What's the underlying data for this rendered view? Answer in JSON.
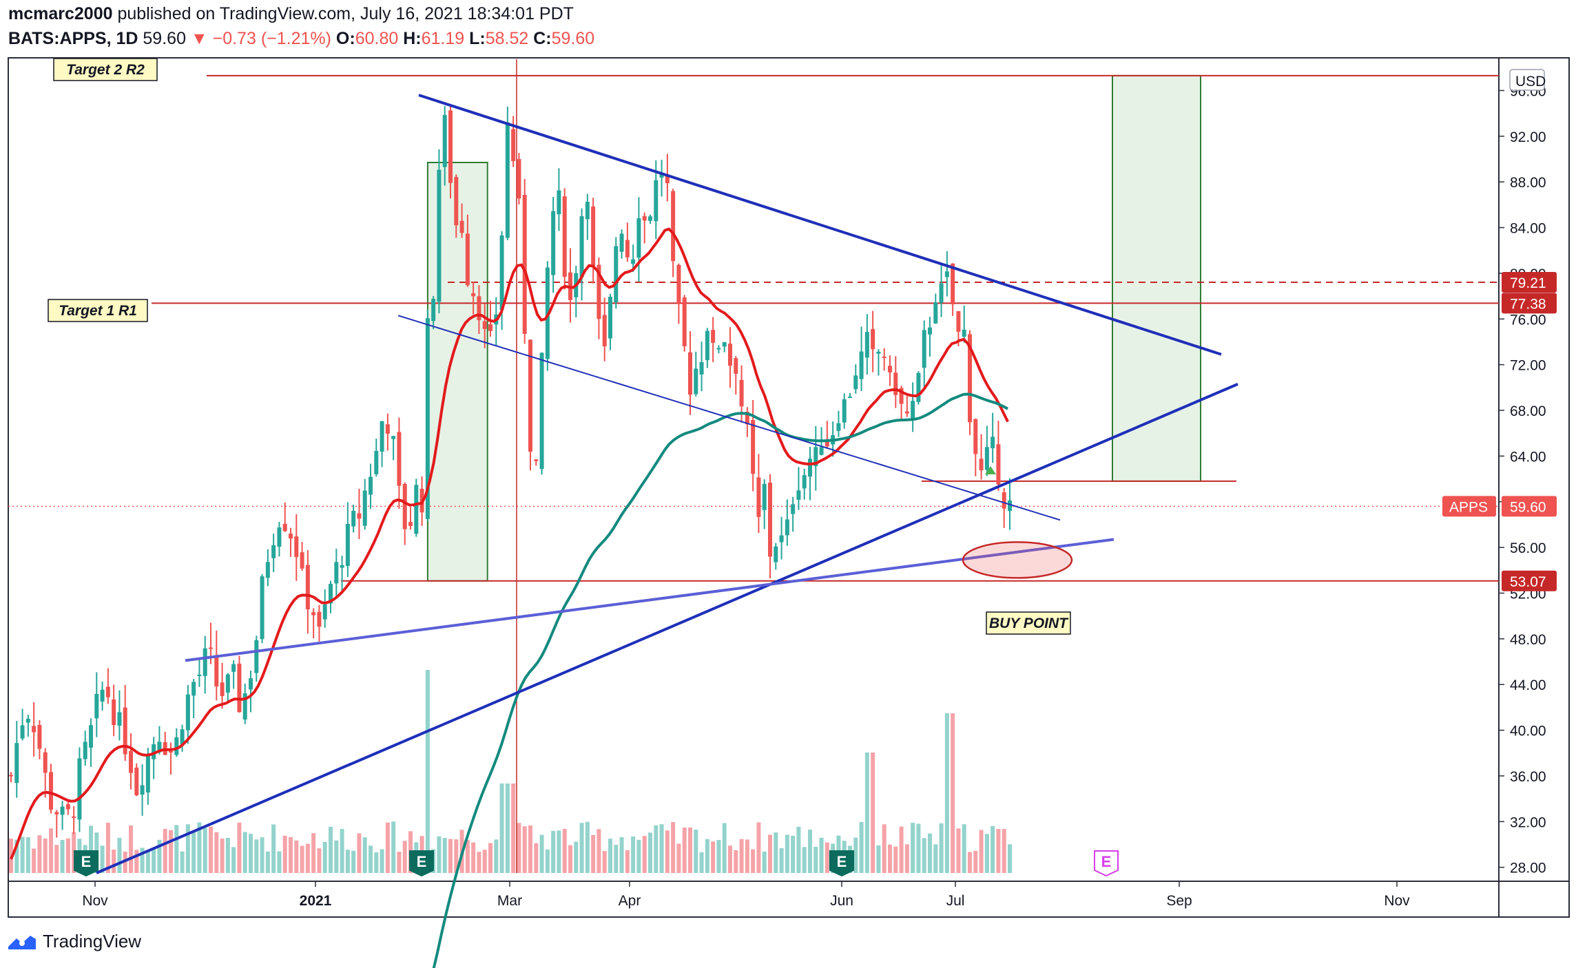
{
  "header": {
    "publisher": "mcmarc2000",
    "published_text": "published on TradingView.com, July 16, 2021 18:34:01 PDT",
    "symbol": "BATS:APPS, 1D",
    "last": "59.60",
    "change": "▼ −0.73 (−1.21%)",
    "o_label": "O:",
    "o_value": "60.80",
    "h_label": "H:",
    "h_value": "61.19",
    "l_label": "L:",
    "l_value": "58.52",
    "c_label": "C:",
    "c_value": "59.60"
  },
  "colors": {
    "up": "#26a69a",
    "down": "#ef5350",
    "vol_up": "#93d3cc",
    "vol_down": "#f5a3a8",
    "ema_short": "#e31a1c",
    "ema_long": "#138a7e",
    "trend_blue": "#1f2fb8",
    "trend_light": "#5b5fd6",
    "level_red": "#c62828",
    "zone_green": "#e6f2e6",
    "zone_border": "#2e7d32",
    "label_box": "#fff9c4"
  },
  "footer": {
    "brand": "TradingView",
    "logo_icon": "tradingview-logo-icon"
  },
  "chart_data": {
    "type": "candlestick",
    "symbol": "APPS",
    "currency_label": "USD",
    "x_ticks": [
      "Nov",
      "2021",
      "Mar",
      "Apr",
      "Jun",
      "Jul",
      "Sep",
      "Nov"
    ],
    "y_ticks": [
      "28.00",
      "32.00",
      "36.00",
      "40.00",
      "44.00",
      "48.00",
      "52.00",
      "56.00",
      "60.00",
      "64.00",
      "68.00",
      "72.00",
      "76.00",
      "80.00",
      "84.00",
      "88.00",
      "92.00",
      "96.00"
    ],
    "ylim": [
      27.5,
      98.5
    ],
    "price_tags": [
      {
        "text": "79.21",
        "price": 79.21
      },
      {
        "text": "77.38",
        "price": 77.38
      },
      {
        "text": "59.60",
        "price": 59.6
      },
      {
        "text": "53.07",
        "price": 53.07
      }
    ],
    "symbol_tag": "APPS",
    "annotations": [
      {
        "text": "Target 2 R2",
        "price": 97.3
      },
      {
        "text": "Target 1 R1",
        "price": 77.4
      },
      {
        "text": "BUY POINT",
        "price": 48.5
      }
    ],
    "earnings_markers": [
      "E",
      "E",
      "E",
      "E"
    ],
    "key_levels": [
      97.3,
      79.21,
      77.38,
      53.07,
      61.8
    ],
    "price_path": [
      [
        0,
        36
      ],
      [
        8,
        40
      ],
      [
        15,
        42
      ],
      [
        22,
        41
      ],
      [
        30,
        38
      ],
      [
        38,
        34
      ],
      [
        46,
        33
      ],
      [
        54,
        32
      ],
      [
        62,
        33
      ],
      [
        70,
        37
      ],
      [
        78,
        39
      ],
      [
        86,
        42
      ],
      [
        94,
        44
      ],
      [
        102,
        42
      ],
      [
        110,
        40
      ],
      [
        118,
        38
      ],
      [
        126,
        35
      ],
      [
        134,
        37
      ],
      [
        142,
        39
      ],
      [
        150,
        40
      ],
      [
        158,
        38
      ],
      [
        166,
        39
      ],
      [
        174,
        42
      ],
      [
        182,
        44
      ],
      [
        190,
        45
      ],
      [
        198,
        47
      ],
      [
        206,
        44
      ],
      [
        214,
        43
      ],
      [
        222,
        45
      ],
      [
        230,
        42
      ],
      [
        238,
        44
      ],
      [
        246,
        48
      ],
      [
        254,
        54
      ],
      [
        262,
        57
      ],
      [
        270,
        59
      ],
      [
        278,
        58
      ],
      [
        286,
        56
      ],
      [
        294,
        52
      ],
      [
        302,
        51
      ],
      [
        310,
        48
      ],
      [
        318,
        52
      ],
      [
        326,
        54
      ],
      [
        334,
        56
      ],
      [
        342,
        58
      ],
      [
        350,
        59
      ],
      [
        358,
        62
      ],
      [
        366,
        64
      ],
      [
        374,
        68
      ],
      [
        382,
        66
      ],
      [
        390,
        60
      ],
      [
        398,
        57
      ],
      [
        406,
        61
      ],
      [
        414,
        60
      ],
      [
        418,
        75
      ],
      [
        422,
        74
      ],
      [
        426,
        85
      ],
      [
        430,
        90
      ],
      [
        434,
        94
      ],
      [
        438,
        90
      ],
      [
        442,
        88
      ],
      [
        446,
        84
      ],
      [
        450,
        86
      ],
      [
        454,
        83
      ],
      [
        458,
        80
      ],
      [
        462,
        79
      ],
      [
        466,
        78
      ],
      [
        470,
        77
      ],
      [
        474,
        75
      ],
      [
        478,
        73
      ],
      [
        482,
        74
      ],
      [
        486,
        76
      ],
      [
        490,
        80
      ],
      [
        494,
        86
      ],
      [
        498,
        93
      ],
      [
        502,
        92
      ],
      [
        506,
        88
      ],
      [
        510,
        85
      ],
      [
        514,
        78
      ],
      [
        518,
        70
      ],
      [
        522,
        64
      ],
      [
        526,
        62
      ],
      [
        530,
        68
      ],
      [
        534,
        74
      ],
      [
        538,
        80
      ],
      [
        542,
        84
      ],
      [
        546,
        87
      ],
      [
        550,
        86
      ],
      [
        554,
        82
      ],
      [
        558,
        79
      ],
      [
        562,
        77
      ],
      [
        566,
        80
      ],
      [
        570,
        84
      ],
      [
        574,
        86
      ],
      [
        578,
        88
      ],
      [
        582,
        82
      ],
      [
        586,
        78
      ],
      [
        590,
        75
      ],
      [
        594,
        72
      ],
      [
        598,
        74
      ],
      [
        602,
        78
      ],
      [
        606,
        82
      ],
      [
        610,
        85
      ],
      [
        614,
        84
      ],
      [
        618,
        82
      ],
      [
        622,
        80
      ],
      [
        626,
        84
      ],
      [
        630,
        86
      ],
      [
        634,
        85
      ],
      [
        638,
        84
      ],
      [
        642,
        86
      ],
      [
        646,
        88
      ],
      [
        650,
        87
      ],
      [
        654,
        90
      ],
      [
        658,
        88
      ],
      [
        662,
        82
      ],
      [
        666,
        78
      ],
      [
        670,
        76
      ],
      [
        674,
        74
      ],
      [
        678,
        72
      ],
      [
        682,
        70
      ],
      [
        686,
        72
      ],
      [
        690,
        71
      ],
      [
        694,
        74
      ],
      [
        698,
        76
      ],
      [
        702,
        74
      ],
      [
        706,
        72
      ],
      [
        710,
        74
      ],
      [
        714,
        75
      ],
      [
        718,
        74
      ],
      [
        722,
        72
      ],
      [
        726,
        73
      ],
      [
        730,
        70
      ],
      [
        734,
        68
      ],
      [
        738,
        66
      ],
      [
        742,
        64
      ],
      [
        746,
        60
      ],
      [
        750,
        58
      ],
      [
        754,
        62
      ],
      [
        758,
        60
      ],
      [
        762,
        55
      ],
      [
        766,
        56
      ],
      [
        770,
        58
      ],
      [
        774,
        56
      ],
      [
        778,
        57
      ],
      [
        782,
        60
      ],
      [
        786,
        61
      ],
      [
        790,
        62
      ],
      [
        794,
        63
      ],
      [
        798,
        62
      ],
      [
        802,
        64
      ],
      [
        806,
        63
      ],
      [
        810,
        65
      ],
      [
        814,
        66
      ],
      [
        818,
        65
      ],
      [
        822,
        67
      ],
      [
        826,
        66
      ],
      [
        830,
        68
      ],
      [
        834,
        69
      ],
      [
        838,
        68
      ],
      [
        842,
        70
      ],
      [
        846,
        72
      ],
      [
        850,
        71
      ],
      [
        854,
        73
      ],
      [
        858,
        74
      ],
      [
        862,
        73
      ],
      [
        866,
        72
      ],
      [
        870,
        73
      ],
      [
        874,
        74
      ],
      [
        878,
        72
      ],
      [
        882,
        70
      ],
      [
        886,
        71
      ],
      [
        890,
        69
      ],
      [
        894,
        68
      ],
      [
        898,
        67
      ],
      [
        902,
        69
      ],
      [
        906,
        68
      ],
      [
        910,
        70
      ],
      [
        914,
        73
      ],
      [
        918,
        75
      ],
      [
        922,
        76
      ],
      [
        926,
        78
      ],
      [
        930,
        79
      ],
      [
        934,
        78
      ],
      [
        938,
        79
      ],
      [
        942,
        80
      ],
      [
        946,
        76
      ],
      [
        950,
        74
      ],
      [
        954,
        78
      ],
      [
        958,
        72
      ],
      [
        962,
        68
      ],
      [
        966,
        65
      ],
      [
        970,
        64
      ],
      [
        974,
        62
      ],
      [
        978,
        64
      ],
      [
        982,
        63
      ],
      [
        986,
        65
      ],
      [
        990,
        63
      ],
      [
        994,
        61
      ],
      [
        998,
        60
      ],
      [
        1002,
        59.6
      ]
    ],
    "overlays": [
      {
        "name": "EMA short",
        "type": "line"
      },
      {
        "name": "EMA long",
        "type": "line"
      },
      {
        "name": "descending resistance",
        "type": "trendline"
      },
      {
        "name": "descending support",
        "type": "trendline"
      },
      {
        "name": "ascending support",
        "type": "trendline"
      },
      {
        "name": "ascending base",
        "type": "trendline"
      }
    ],
    "grid": false,
    "volume_panel": true
  }
}
